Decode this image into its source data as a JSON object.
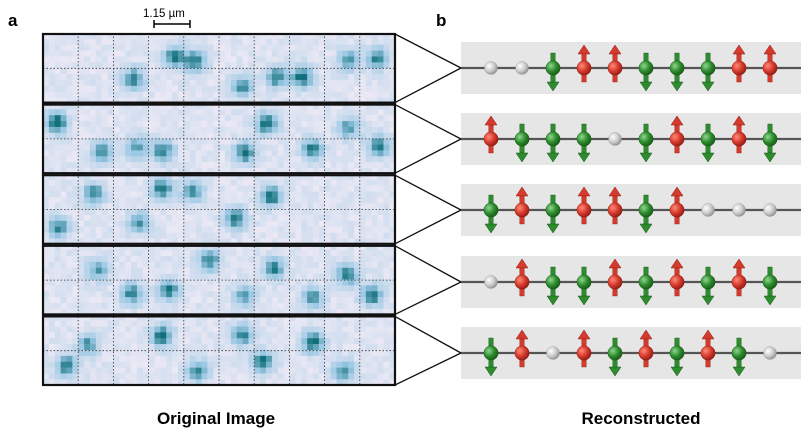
{
  "figure": {
    "panel_a_label": "a",
    "panel_b_label": "b",
    "scale_bar_label": "1.15 µm",
    "caption_left": "Original Image",
    "caption_right": "Reconstructed"
  },
  "colors": {
    "spin_up": "#d63a2c",
    "spin_down": "#2e8b2e",
    "hole": "#c8c8c8",
    "strip_background": "#e6e6e6",
    "pixel_low": "#ece9f5",
    "pixel_high": "#0f6f7a"
  },
  "legend": {
    "u": "spin-up-site",
    "d": "spin-down-site",
    "h": "hole-site"
  },
  "chains": [
    {
      "sites": [
        "h",
        "h",
        "d",
        "u",
        "u",
        "d",
        "d",
        "d",
        "u",
        "u"
      ]
    },
    {
      "sites": [
        "u",
        "d",
        "d",
        "d",
        "h",
        "d",
        "u",
        "d",
        "u",
        "d"
      ]
    },
    {
      "sites": [
        "d",
        "u",
        "d",
        "u",
        "u",
        "d",
        "u",
        "h",
        "h",
        "h"
      ]
    },
    {
      "sites": [
        "h",
        "u",
        "d",
        "d",
        "u",
        "d",
        "u",
        "d",
        "u",
        "d"
      ]
    },
    {
      "sites": [
        "d",
        "u",
        "h",
        "u",
        "d",
        "u",
        "d",
        "u",
        "d",
        "h"
      ]
    }
  ]
}
